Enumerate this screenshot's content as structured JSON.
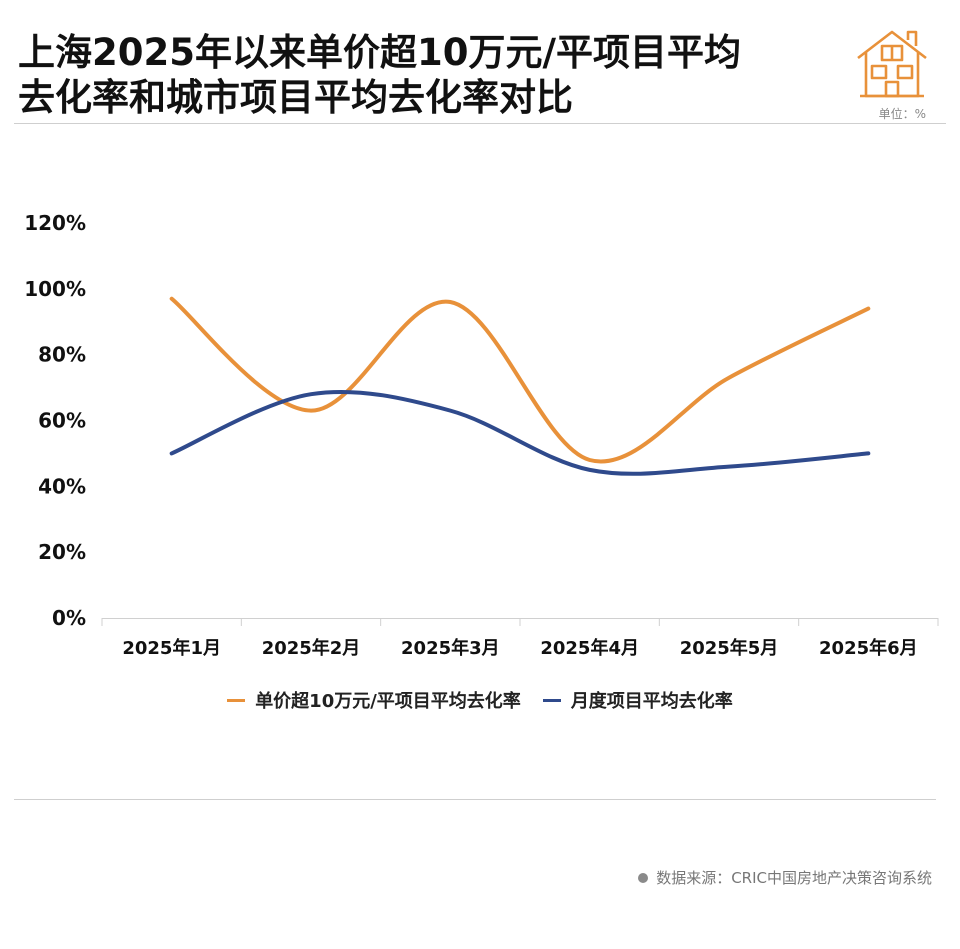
{
  "header": {
    "title_line1": "上海2025年以来单价超10万元/平项目平均",
    "title_line2": "去化率和城市项目平均去化率对比",
    "unit": "单位：%"
  },
  "footer": {
    "source": "数据来源：CRIC中国房地产决策咨询系统"
  },
  "chart_data": {
    "type": "line",
    "categories": [
      "2025年1月",
      "2025年2月",
      "2025年3月",
      "2025年4月",
      "2025年5月",
      "2025年6月"
    ],
    "y_ticks": [
      "0%",
      "20%",
      "40%",
      "60%",
      "80%",
      "100%",
      "120%"
    ],
    "ylim": [
      0,
      120
    ],
    "grid": false,
    "legend_position": "bottom",
    "series": [
      {
        "name": "单价超10万元/平项目平均去化率",
        "color": "#E8913A",
        "values": [
          97,
          63,
          96,
          48,
          73,
          94
        ]
      },
      {
        "name": "月度项目平均去化率",
        "color": "#2F4A8C",
        "values": [
          50,
          68,
          63,
          45,
          46,
          50
        ]
      }
    ]
  }
}
